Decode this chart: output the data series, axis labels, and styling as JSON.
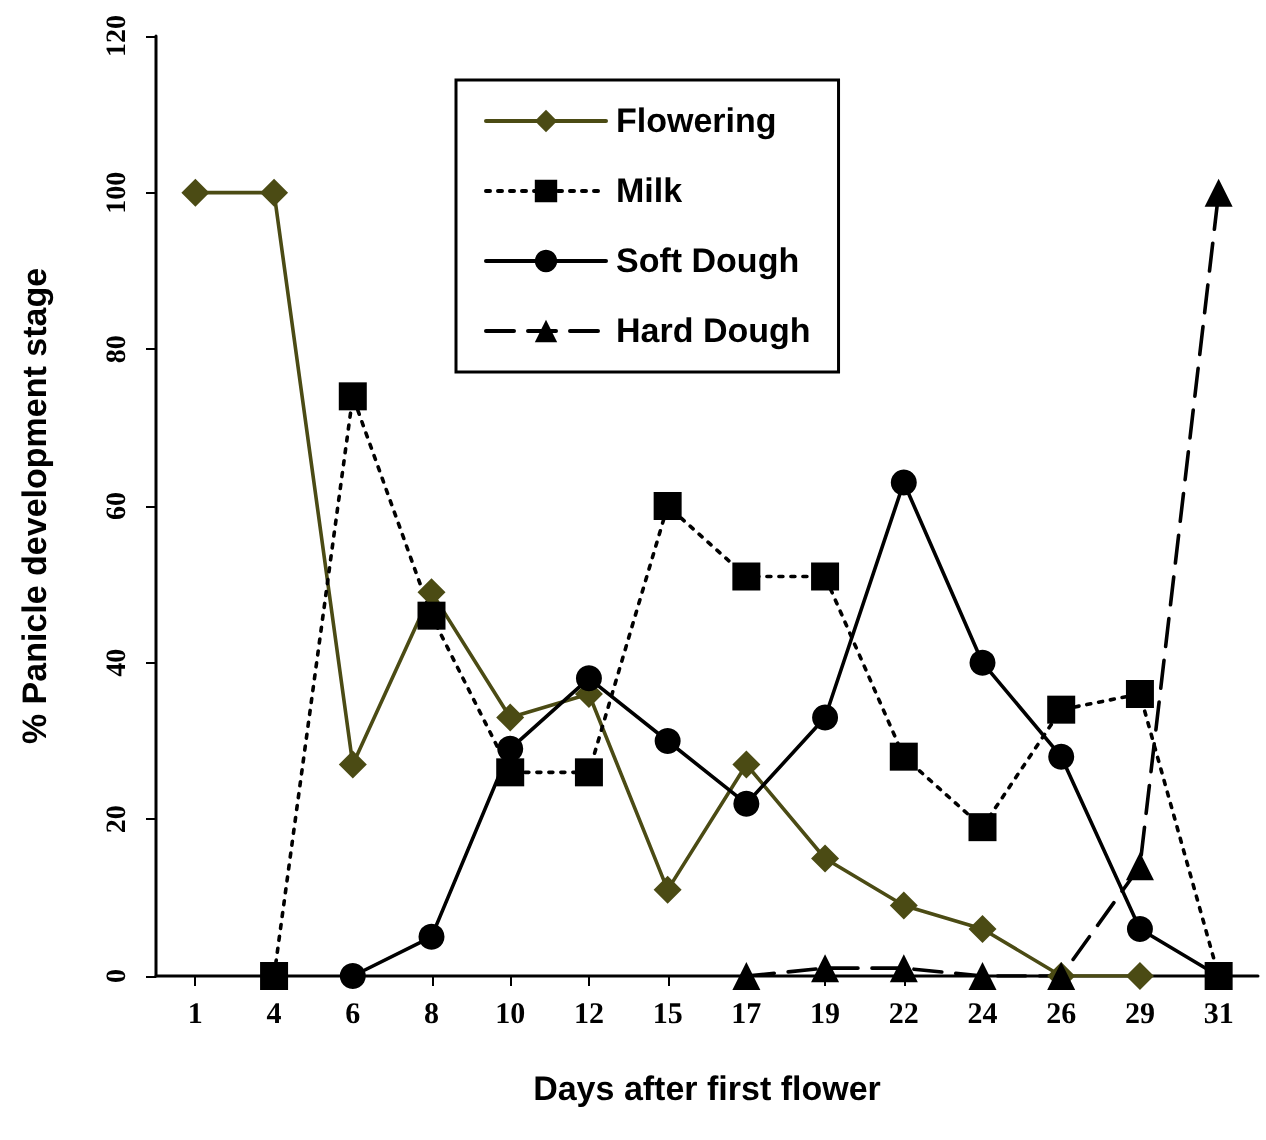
{
  "chart_data": {
    "type": "line",
    "xlabel": "Days after first flower",
    "ylabel": "% Panicle development stage",
    "categories": [
      "1",
      "4",
      "6",
      "8",
      "10",
      "12",
      "15",
      "17",
      "19",
      "22",
      "24",
      "26",
      "29",
      "31"
    ],
    "ylim": [
      0,
      120
    ],
    "yticks": [
      0,
      20,
      40,
      60,
      80,
      100,
      120
    ],
    "grid": false,
    "legend": "top",
    "series": [
      {
        "name": "Flowering",
        "color": "#4b4b14",
        "marker": "diamond",
        "line_style": "solid",
        "values": [
          100,
          100,
          27,
          49,
          33,
          36,
          11,
          27,
          15,
          9,
          6,
          0,
          0,
          null
        ]
      },
      {
        "name": "Milk",
        "color": "#000000",
        "marker": "square",
        "line_style": "dotted",
        "values": [
          null,
          0,
          74,
          46,
          26,
          26,
          60,
          51,
          51,
          28,
          19,
          34,
          36,
          0
        ]
      },
      {
        "name": "Soft Dough",
        "color": "#000000",
        "marker": "circle",
        "line_style": "solid",
        "values": [
          null,
          null,
          0,
          5,
          29,
          38,
          30,
          22,
          33,
          63,
          40,
          28,
          6,
          0
        ]
      },
      {
        "name": "Hard Dough",
        "color": "#000000",
        "marker": "triangle",
        "line_style": "dashed",
        "values": [
          null,
          null,
          null,
          null,
          null,
          null,
          null,
          0,
          1,
          1,
          0,
          0,
          14,
          100
        ]
      }
    ]
  }
}
